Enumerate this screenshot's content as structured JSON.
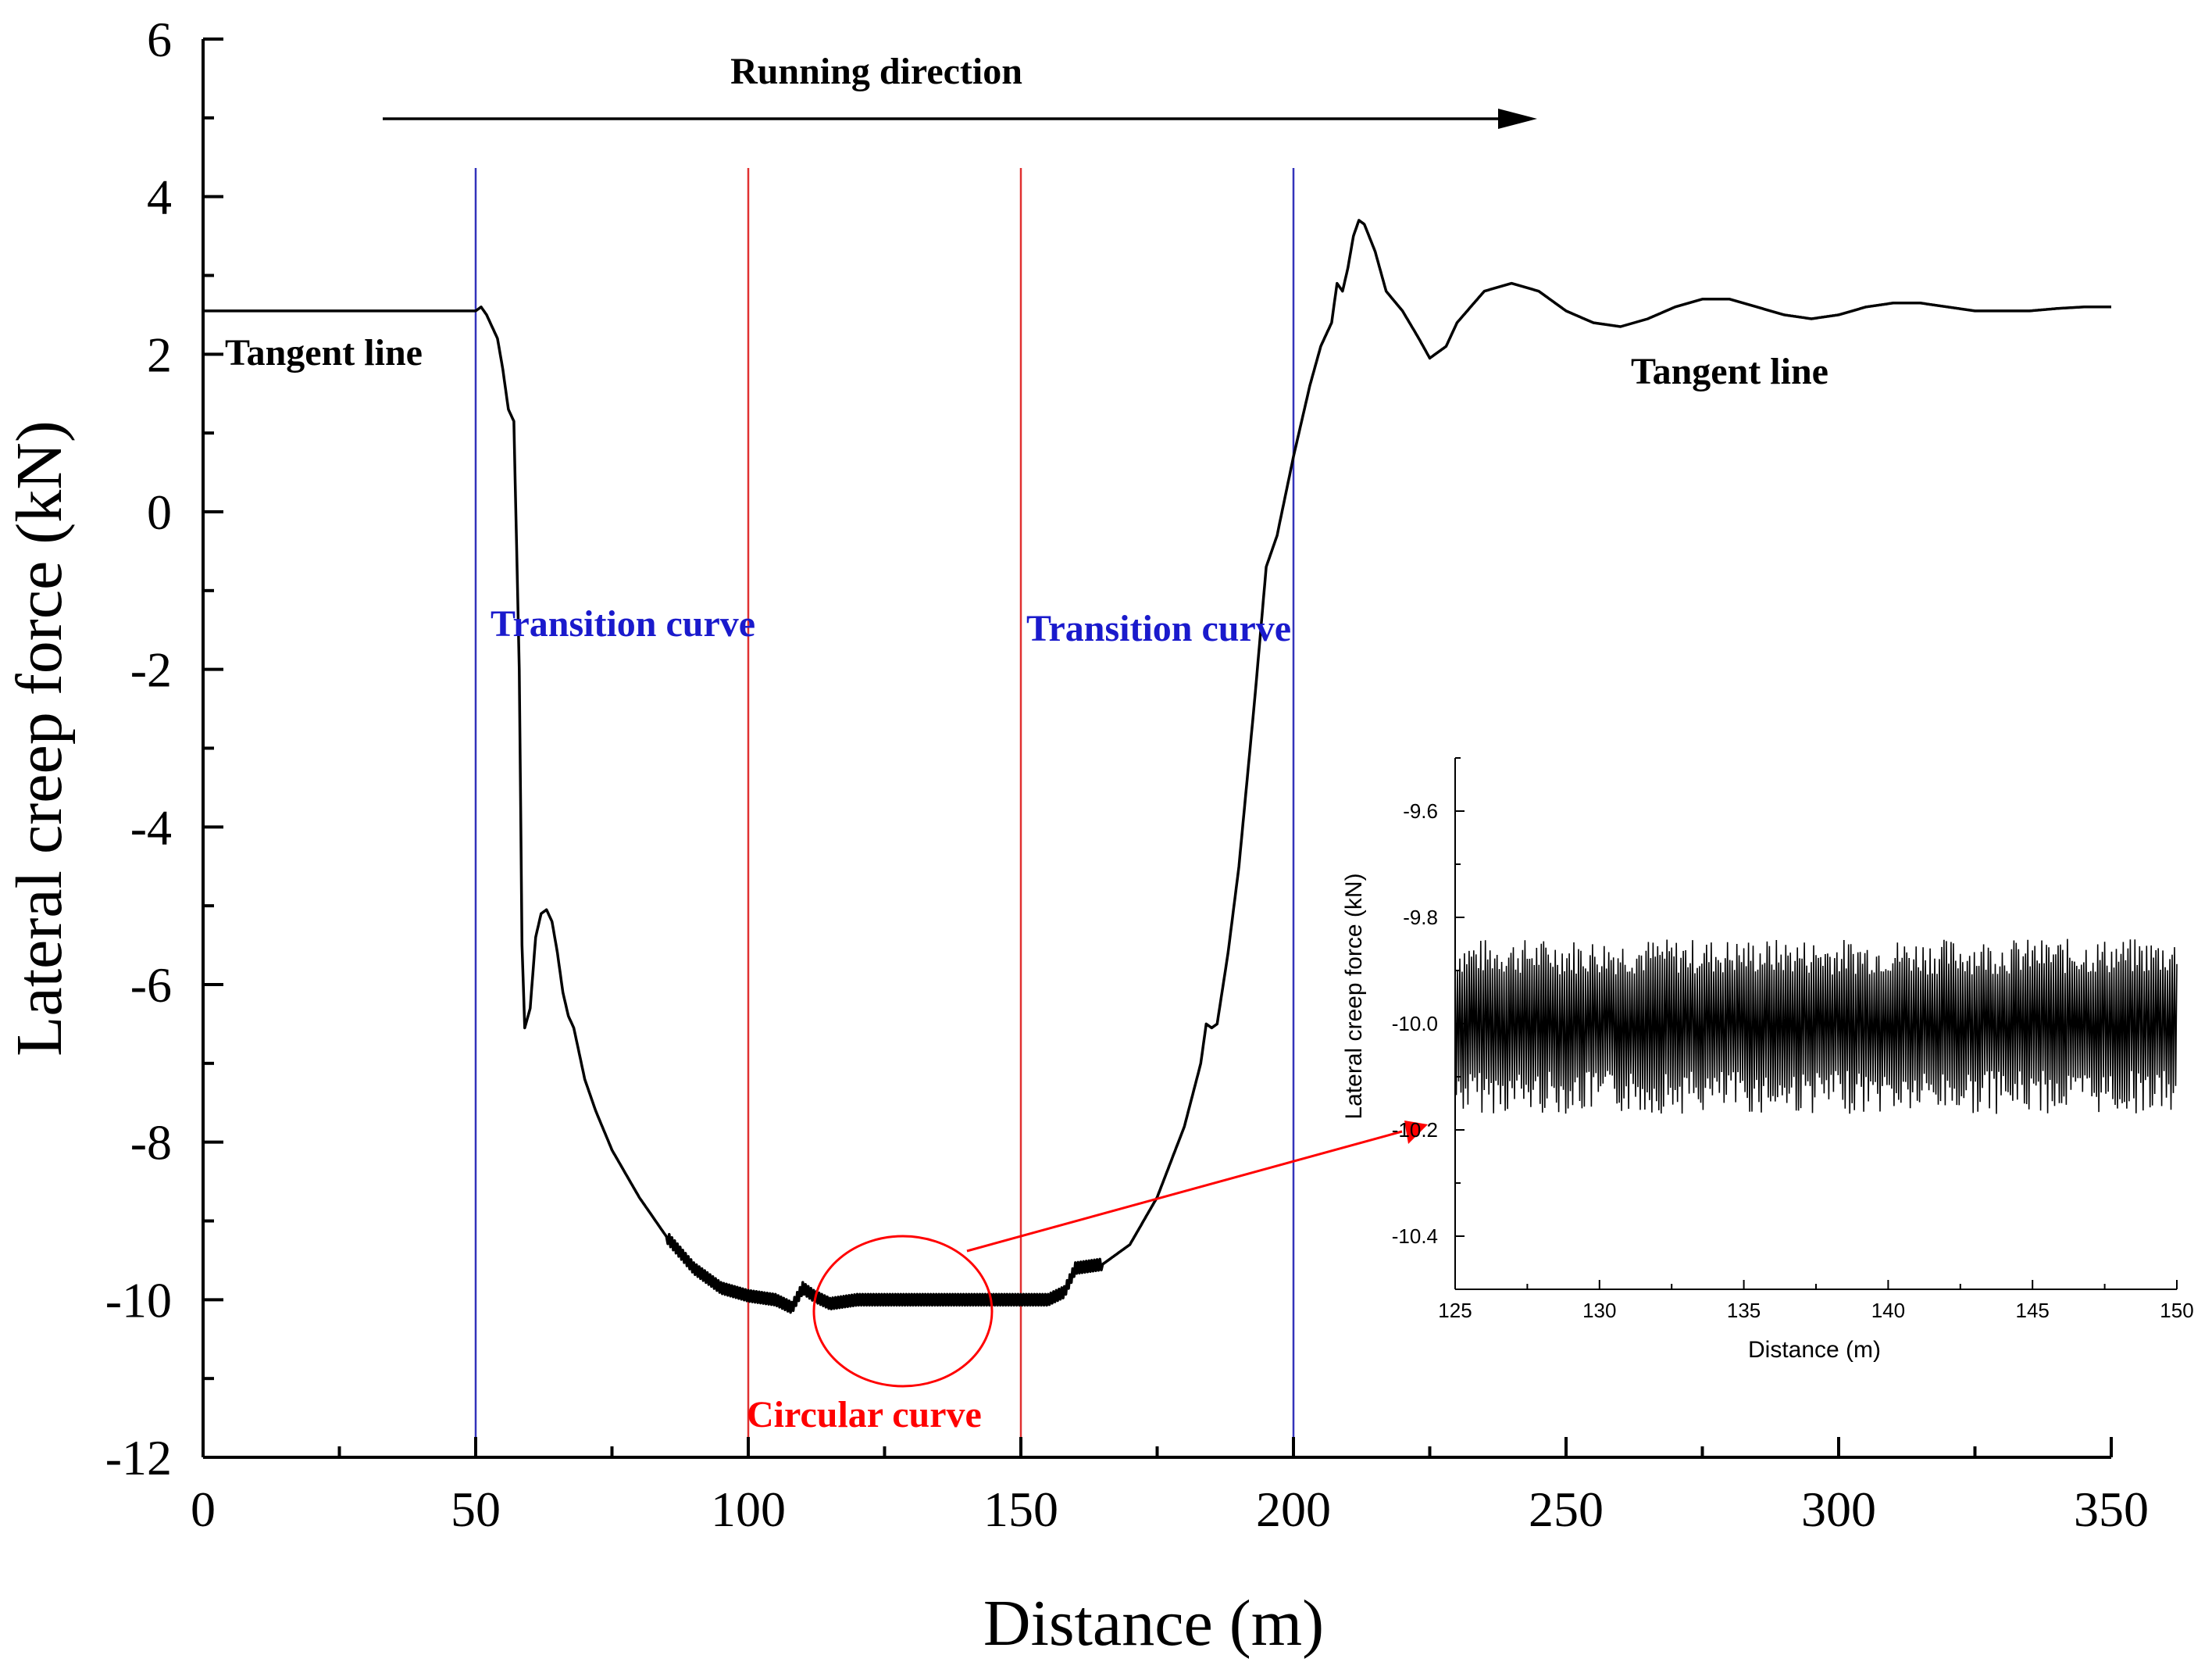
{
  "chart_data": [
    {
      "type": "line",
      "name": "main",
      "xlabel": "Distance (m)",
      "ylabel": "Lateral creep force (kN)",
      "xlim": [
        0,
        350
      ],
      "ylim": [
        -12,
        6
      ],
      "xticks": [
        "0",
        "50",
        "100",
        "150",
        "200",
        "250",
        "300",
        "350"
      ],
      "yticks": [
        "6",
        "4",
        "2",
        "0",
        "-2",
        "-4",
        "-6",
        "-8",
        "-10",
        "-12"
      ],
      "series": [
        {
          "name": "Lateral creep force",
          "color": "#000000",
          "x": [
            0,
            50,
            51,
            52,
            54,
            55,
            56,
            57,
            58,
            58.5,
            59,
            60,
            61,
            62,
            63,
            64,
            65,
            66,
            67,
            68,
            70,
            72,
            75,
            80,
            85,
            90,
            95,
            100,
            105,
            108,
            110,
            112,
            115,
            120,
            130,
            140,
            150,
            155,
            158,
            160,
            165,
            170,
            175,
            180,
            183,
            184,
            185,
            186,
            188,
            190,
            193,
            195,
            197,
            200,
            201,
            203,
            205,
            207,
            208,
            209,
            210,
            211,
            212,
            213,
            215,
            217,
            220,
            223,
            225,
            228,
            230,
            235,
            240,
            245,
            250,
            255,
            260,
            265,
            270,
            275,
            280,
            285,
            290,
            295,
            300,
            305,
            310,
            315,
            320,
            325,
            330,
            335,
            340,
            345,
            350
          ],
          "y": [
            2.55,
            2.55,
            2.6,
            2.5,
            2.2,
            1.8,
            1.3,
            1.15,
            -2.0,
            -5.5,
            -6.55,
            -6.3,
            -5.4,
            -5.1,
            -5.05,
            -5.2,
            -5.6,
            -6.1,
            -6.4,
            -6.55,
            -7.2,
            -7.6,
            -8.1,
            -8.7,
            -9.2,
            -9.6,
            -9.85,
            -9.95,
            -10.0,
            -10.1,
            -9.85,
            -9.95,
            -10.05,
            -10.0,
            -10.0,
            -10.0,
            -10.0,
            -10.0,
            -9.9,
            -9.6,
            -9.55,
            -9.3,
            -8.7,
            -7.8,
            -7.0,
            -6.5,
            -6.55,
            -6.5,
            -5.6,
            -4.5,
            -2.3,
            -0.7,
            -0.3,
            0.7,
            1.0,
            1.6,
            2.1,
            2.4,
            2.9,
            2.8,
            3.1,
            3.5,
            3.7,
            3.65,
            3.3,
            2.8,
            2.55,
            2.2,
            1.95,
            2.1,
            2.4,
            2.8,
            2.9,
            2.8,
            2.55,
            2.4,
            2.35,
            2.45,
            2.6,
            2.7,
            2.7,
            2.6,
            2.5,
            2.45,
            2.5,
            2.6,
            2.65,
            2.65,
            2.6,
            2.55,
            2.55,
            2.55,
            2.58,
            2.6,
            2.6
          ]
        }
      ],
      "vlines": [
        {
          "x": 50,
          "color": "#3333bb"
        },
        {
          "x": 100,
          "color": "#e03030"
        },
        {
          "x": 150,
          "color": "#e03030"
        },
        {
          "x": 200,
          "color": "#3333bb"
        }
      ],
      "annotations": [
        {
          "text": "Running direction",
          "color": "#000000"
        },
        {
          "text": "Tangent line",
          "color": "#000000"
        },
        {
          "text": "Transition curve",
          "color": "#1a1acc"
        },
        {
          "text": "Transition curve",
          "color": "#1a1acc"
        },
        {
          "text": "Circular curve",
          "color": "#ff0000"
        },
        {
          "text": "Tangent line",
          "color": "#000000"
        }
      ]
    },
    {
      "type": "line",
      "name": "inset",
      "xlabel": "Distance (m)",
      "ylabel": "Lateral creep force (kN)",
      "xlim": [
        125,
        150
      ],
      "ylim": [
        -10.5,
        -9.5
      ],
      "xticks": [
        "125",
        "130",
        "135",
        "140",
        "145",
        "150"
      ],
      "yticks": [
        "-9.6",
        "-9.8",
        "-10.0",
        "-10.2",
        "-10.4"
      ],
      "series": [
        {
          "name": "Lateral creep force (detail)",
          "color": "#000000",
          "mean": -9.99,
          "band": [
            -10.17,
            -9.84
          ]
        }
      ]
    }
  ],
  "colors": {
    "highlight": "#ff0000",
    "boundary_transition": "#3333bb",
    "boundary_circular": "#e03030"
  }
}
